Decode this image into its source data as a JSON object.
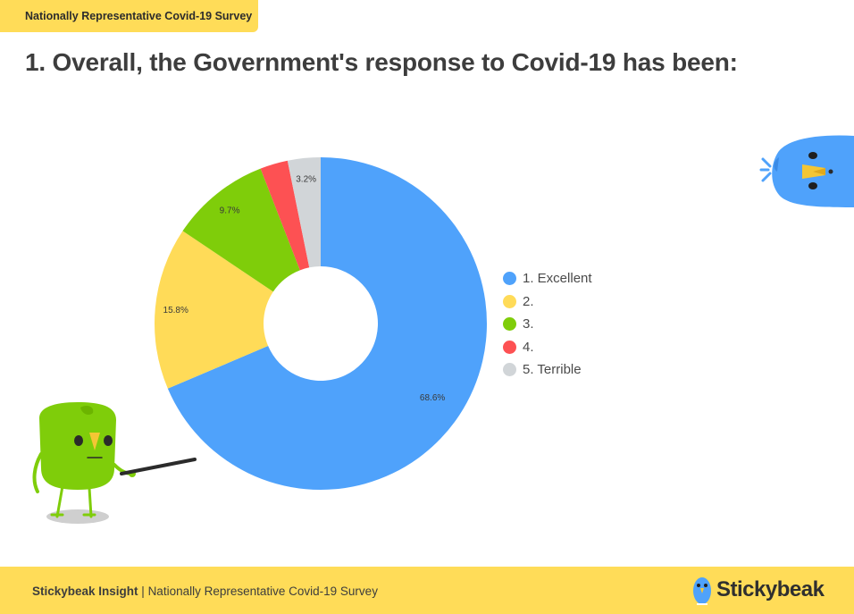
{
  "header": {
    "tag": "Nationally Representative Covid-19 Survey",
    "question_title": "1. Overall, the Government's response to Covid-19 has been:"
  },
  "chart_data": {
    "type": "pie",
    "donut": true,
    "categories": [
      "1. Excellent",
      "2.",
      "3.",
      "4.",
      "5. Terrible"
    ],
    "values": [
      68.6,
      15.8,
      9.7,
      2.7,
      3.2
    ],
    "data_labels": [
      "68.6%",
      "15.8%",
      "9.7%",
      "",
      "3.2%"
    ],
    "colors": [
      "#4fa2fb",
      "#ffdb58",
      "#7fcd0a",
      "#fd5153",
      "#d1d5d8"
    ],
    "legend_position": "right",
    "start_angle": "top",
    "direction": "clockwise"
  },
  "legend": {
    "items": [
      {
        "label": "1. Excellent",
        "color": "#4fa2fb"
      },
      {
        "label": "2.",
        "color": "#ffdb58"
      },
      {
        "label": "3.",
        "color": "#7fcd0a"
      },
      {
        "label": "4.",
        "color": "#fd5153"
      },
      {
        "label": "5. Terrible",
        "color": "#d1d5d8"
      }
    ]
  },
  "footer": {
    "brand": "Stickybeak Insight",
    "separator": " | ",
    "subtitle": "Nationally Representative Covid-19 Survey",
    "logo_text": "Stickybeak"
  },
  "decorations": {
    "right_mascot": "blue-bird-mascot-icon",
    "left_mascot": "green-bird-presenter-icon",
    "logo_icon": "blue-bird-logo-icon"
  },
  "colors": {
    "accent_yellow": "#ffdc58",
    "title_text": "#3d3d3d"
  }
}
